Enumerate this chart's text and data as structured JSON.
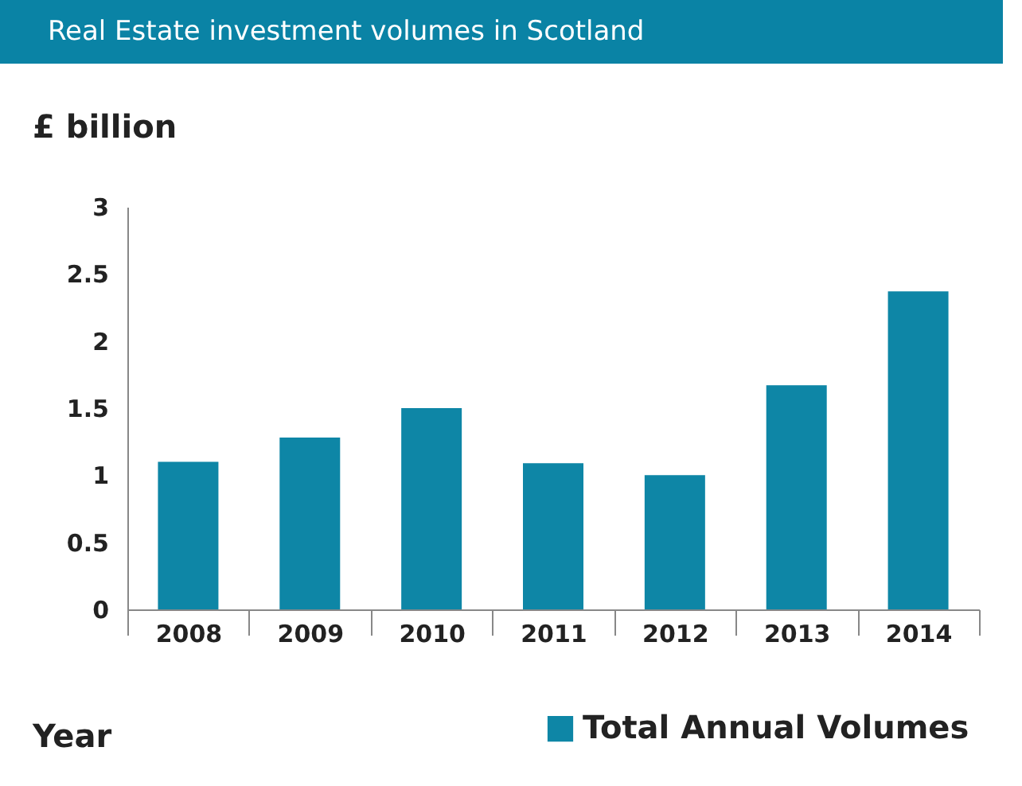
{
  "chart_data": {
    "type": "bar",
    "title": "Real Estate investment volumes in Scotland",
    "xlabel": "Year",
    "ylabel": "£ billion",
    "categories": [
      "2008",
      "2009",
      "2010",
      "2011",
      "2012",
      "2013",
      "2014"
    ],
    "series": [
      {
        "name": "Total Annual Volumes",
        "color": "#0e86a6",
        "values": [
          1.1,
          1.28,
          1.5,
          1.09,
          1.0,
          1.67,
          2.37
        ]
      }
    ],
    "ylim": [
      0,
      3
    ],
    "yticks": [
      0,
      0.5,
      1,
      1.5,
      2,
      2.5,
      3
    ],
    "grid": false,
    "legend": "bottom right"
  }
}
